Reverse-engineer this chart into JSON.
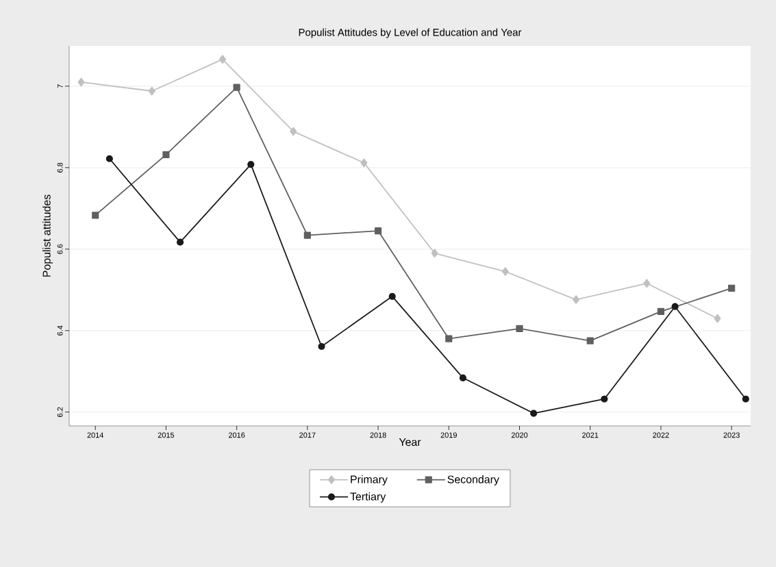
{
  "chart_data": {
    "type": "line",
    "title": "Populist Attitudes by Level of Education and Year",
    "xlabel": "Year",
    "ylabel": "Populist attitudes",
    "xlim": [
      2013.63,
      2023.27
    ],
    "ylim": [
      6.166,
      7.099
    ],
    "xticks": [
      2014,
      2015,
      2016,
      2017,
      2018,
      2019,
      2020,
      2021,
      2022,
      2023
    ],
    "yticks": [
      {
        "value": 6.2,
        "label": "6.2"
      },
      {
        "value": 6.4,
        "label": "6.4"
      },
      {
        "value": 6.6,
        "label": "6.6"
      },
      {
        "value": 6.8,
        "label": "6.8"
      },
      {
        "value": 7,
        "label": "7"
      }
    ],
    "grid": "y",
    "legend": "bottom",
    "line_style": "solid",
    "series": [
      {
        "name": "Primary",
        "color": "#c0c0c0",
        "marker": "diamond",
        "x": [
          2013.8,
          2014.8,
          2015.8,
          2016.8,
          2017.8,
          2018.8,
          2019.8,
          2020.8,
          2021.8,
          2022.8
        ],
        "values": [
          7.01,
          6.988,
          7.066,
          6.889,
          6.812,
          6.59,
          6.545,
          6.476,
          6.516,
          6.43
        ]
      },
      {
        "name": "Secondary",
        "color": "#606060",
        "marker": "square",
        "x": [
          2014,
          2015,
          2016,
          2017,
          2018,
          2019,
          2020,
          2021,
          2022,
          2023
        ],
        "values": [
          6.683,
          6.832,
          6.997,
          6.634,
          6.645,
          6.38,
          6.405,
          6.375,
          6.447,
          6.504
        ]
      },
      {
        "name": "Tertiary",
        "color": "#1a1a1a",
        "marker": "circle",
        "x": [
          2014.2,
          2015.2,
          2016.2,
          2017.2,
          2018.2,
          2019.2,
          2020.2,
          2021.2,
          2022.2,
          2023.2
        ],
        "values": [
          6.822,
          6.617,
          6.808,
          6.361,
          6.484,
          6.284,
          6.197,
          6.232,
          6.459,
          6.232
        ]
      }
    ]
  }
}
